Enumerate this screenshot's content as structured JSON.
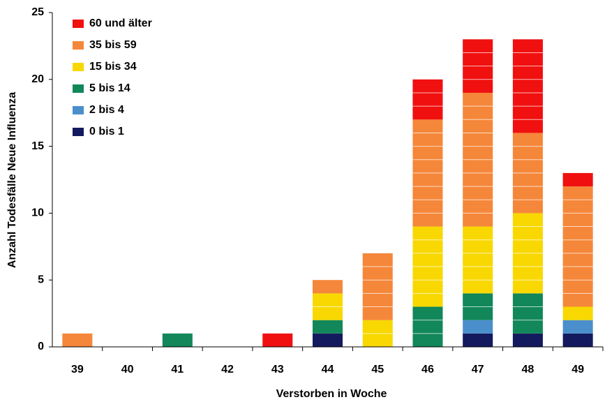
{
  "chart_data": {
    "type": "stacked_bar",
    "y_label": "Anzahl Todesfälle Neue Influenza",
    "x_label": "Verstorben in Woche",
    "categories": [
      "39",
      "40",
      "41",
      "42",
      "43",
      "44",
      "45",
      "46",
      "47",
      "48",
      "49"
    ],
    "series": [
      {
        "name": "0 bis 1",
        "color": "#141a5e",
        "values": [
          0,
          0,
          0,
          0,
          0,
          1,
          0,
          0,
          1,
          1,
          1
        ]
      },
      {
        "name": "2 bis 4",
        "color": "#4a8fcc",
        "values": [
          0,
          0,
          0,
          0,
          0,
          0,
          0,
          0,
          1,
          0,
          1
        ]
      },
      {
        "name": "5 bis 14",
        "color": "#12875a",
        "values": [
          0,
          0,
          1,
          0,
          0,
          1,
          0,
          3,
          2,
          3,
          0
        ]
      },
      {
        "name": "15 bis 34",
        "color": "#f8d800",
        "values": [
          0,
          0,
          0,
          0,
          0,
          2,
          2,
          6,
          5,
          6,
          1
        ]
      },
      {
        "name": "35 bis 59",
        "color": "#f5873a",
        "values": [
          1,
          0,
          0,
          0,
          0,
          1,
          5,
          8,
          10,
          6,
          9
        ]
      },
      {
        "name": "60 und älter",
        "color": "#f01010",
        "values": [
          0,
          0,
          0,
          0,
          1,
          0,
          0,
          3,
          4,
          7,
          1
        ]
      }
    ],
    "ylim": [
      0,
      25
    ],
    "yticks": [
      0,
      5,
      10,
      15,
      20,
      25
    ]
  }
}
